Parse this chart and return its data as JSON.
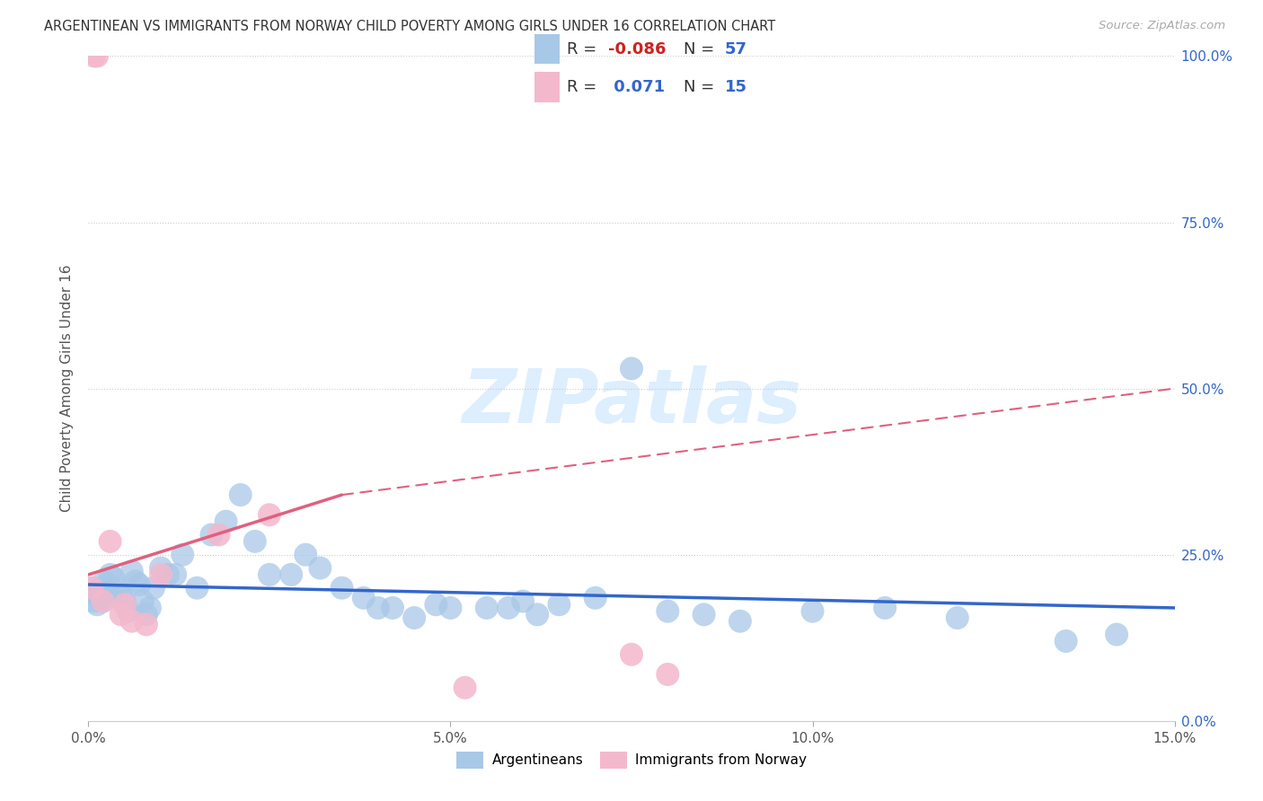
{
  "title": "ARGENTINEAN VS IMMIGRANTS FROM NORWAY CHILD POVERTY AMONG GIRLS UNDER 16 CORRELATION CHART",
  "source": "Source: ZipAtlas.com",
  "ylabel": "Child Poverty Among Girls Under 16",
  "xlim": [
    0.0,
    15.0
  ],
  "ylim": [
    0.0,
    100.0
  ],
  "xticks": [
    0.0,
    5.0,
    10.0,
    15.0
  ],
  "xtick_labels": [
    "0.0%",
    "5.0%",
    "10.0%",
    "15.0%"
  ],
  "yticks_right": [
    0.0,
    25.0,
    50.0,
    75.0,
    100.0
  ],
  "ytick_labels_right": [
    "0.0%",
    "25.0%",
    "50.0%",
    "75.0%",
    "100.0%"
  ],
  "R_blue": -0.086,
  "N_blue": 57,
  "R_pink": 0.071,
  "N_pink": 15,
  "blue_color": "#a8c8e8",
  "pink_color": "#f4b8cc",
  "blue_line_color": "#3366cc",
  "pink_line_color": "#e06080",
  "watermark_color": "#ddeeff",
  "blue_scatter_x": [
    0.05,
    0.08,
    0.1,
    0.12,
    0.15,
    0.18,
    0.2,
    0.22,
    0.25,
    0.3,
    0.35,
    0.4,
    0.45,
    0.5,
    0.55,
    0.6,
    0.65,
    0.7,
    0.75,
    0.8,
    0.85,
    0.9,
    1.0,
    1.1,
    1.2,
    1.3,
    1.5,
    1.7,
    1.9,
    2.1,
    2.3,
    2.5,
    2.8,
    3.0,
    3.2,
    3.5,
    3.8,
    4.0,
    4.2,
    4.5,
    4.8,
    5.0,
    5.5,
    6.0,
    6.5,
    7.0,
    7.5,
    8.0,
    8.5,
    9.0,
    10.0,
    11.0,
    12.0,
    13.5,
    14.2,
    5.8,
    6.2
  ],
  "blue_scatter_y": [
    20.0,
    18.0,
    19.0,
    17.5,
    18.5,
    20.0,
    18.0,
    21.0,
    19.5,
    22.0,
    21.5,
    20.0,
    19.0,
    18.0,
    16.5,
    22.5,
    21.0,
    20.5,
    18.0,
    16.0,
    17.0,
    20.0,
    23.0,
    22.0,
    22.0,
    25.0,
    20.0,
    28.0,
    30.0,
    34.0,
    27.0,
    22.0,
    22.0,
    25.0,
    23.0,
    20.0,
    18.5,
    17.0,
    17.0,
    15.5,
    17.5,
    17.0,
    17.0,
    18.0,
    17.5,
    18.5,
    53.0,
    16.5,
    16.0,
    15.0,
    16.5,
    17.0,
    15.5,
    12.0,
    13.0,
    17.0,
    16.0
  ],
  "pink_scatter_x": [
    0.05,
    0.08,
    0.12,
    0.2,
    0.3,
    0.45,
    0.5,
    0.6,
    0.8,
    1.0,
    1.8,
    2.5,
    5.2,
    7.5,
    8.0
  ],
  "pink_scatter_y": [
    20.0,
    100.0,
    100.0,
    18.0,
    27.0,
    16.0,
    17.5,
    15.0,
    14.5,
    22.0,
    28.0,
    31.0,
    5.0,
    10.0,
    7.0
  ],
  "blue_trend_x0": 0.0,
  "blue_trend_x1": 15.0,
  "blue_trend_y0": 20.5,
  "blue_trend_y1": 17.0,
  "pink_solid_x0": 0.0,
  "pink_solid_x1": 3.5,
  "pink_solid_y0": 22.0,
  "pink_solid_y1": 34.0,
  "pink_dash_x0": 3.5,
  "pink_dash_x1": 15.0,
  "pink_dash_y0": 34.0,
  "pink_dash_y1": 50.0
}
